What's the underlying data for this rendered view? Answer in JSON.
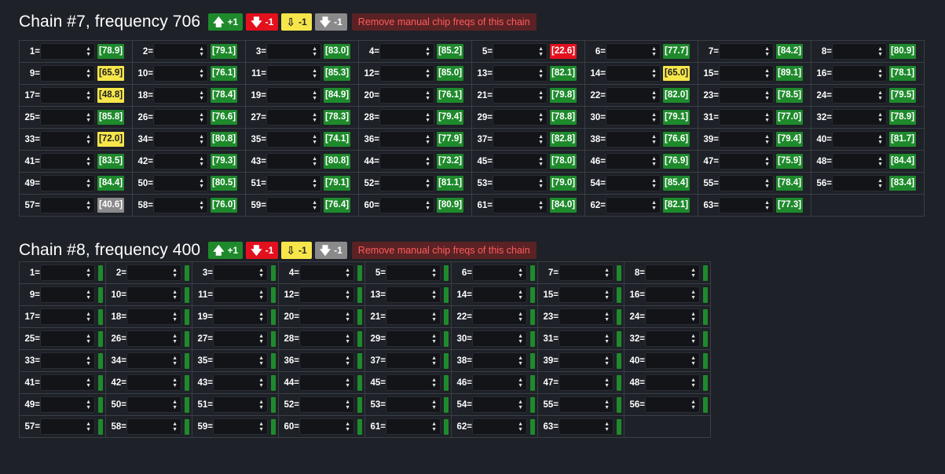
{
  "colors": {
    "background": "#1e2127",
    "green": "#1e8a2c",
    "red": "#e3101d",
    "yellow": "#f6e64a",
    "gray": "#8a8a8a",
    "remove_bg": "#5a2224",
    "remove_text": "#ff5b5e"
  },
  "icons": {
    "up": "arrow-up-icon",
    "down": "arrow-down-icon",
    "spinner": "spinner-arrows-icon"
  },
  "chains": [
    {
      "title": "Chain #7, frequency 706",
      "buttons": {
        "up": "+1",
        "down": "-1",
        "yellow": "-1",
        "gray": "-1",
        "remove": "Remove manual chip freqs of this chain"
      },
      "columns": 8,
      "chips": [
        {
          "label": "1=",
          "temp": "[78.9]",
          "status": "green"
        },
        {
          "label": "2=",
          "temp": "[79.1]",
          "status": "green"
        },
        {
          "label": "3=",
          "temp": "[83.0]",
          "status": "green"
        },
        {
          "label": "4=",
          "temp": "[85.2]",
          "status": "green"
        },
        {
          "label": "5=",
          "temp": "[22.6]",
          "status": "red"
        },
        {
          "label": "6=",
          "temp": "[77.7]",
          "status": "green"
        },
        {
          "label": "7=",
          "temp": "[84.2]",
          "status": "green"
        },
        {
          "label": "8=",
          "temp": "[80.9]",
          "status": "green"
        },
        {
          "label": "9=",
          "temp": "[65.9]",
          "status": "yellow"
        },
        {
          "label": "10=",
          "temp": "[76.1]",
          "status": "green"
        },
        {
          "label": "11=",
          "temp": "[85.3]",
          "status": "green"
        },
        {
          "label": "12=",
          "temp": "[85.0]",
          "status": "green"
        },
        {
          "label": "13=",
          "temp": "[82.1]",
          "status": "green"
        },
        {
          "label": "14=",
          "temp": "[65.0]",
          "status": "yellow"
        },
        {
          "label": "15=",
          "temp": "[89.1]",
          "status": "green"
        },
        {
          "label": "16=",
          "temp": "[78.1]",
          "status": "green"
        },
        {
          "label": "17=",
          "temp": "[48.8]",
          "status": "yellow"
        },
        {
          "label": "18=",
          "temp": "[78.4]",
          "status": "green"
        },
        {
          "label": "19=",
          "temp": "[84.9]",
          "status": "green"
        },
        {
          "label": "20=",
          "temp": "[76.1]",
          "status": "green"
        },
        {
          "label": "21=",
          "temp": "[79.8]",
          "status": "green"
        },
        {
          "label": "22=",
          "temp": "[82.0]",
          "status": "green"
        },
        {
          "label": "23=",
          "temp": "[78.5]",
          "status": "green"
        },
        {
          "label": "24=",
          "temp": "[79.5]",
          "status": "green"
        },
        {
          "label": "25=",
          "temp": "[85.8]",
          "status": "green"
        },
        {
          "label": "26=",
          "temp": "[76.6]",
          "status": "green"
        },
        {
          "label": "27=",
          "temp": "[78.3]",
          "status": "green"
        },
        {
          "label": "28=",
          "temp": "[79.4]",
          "status": "green"
        },
        {
          "label": "29=",
          "temp": "[78.8]",
          "status": "green"
        },
        {
          "label": "30=",
          "temp": "[79.1]",
          "status": "green"
        },
        {
          "label": "31=",
          "temp": "[77.0]",
          "status": "green"
        },
        {
          "label": "32=",
          "temp": "[78.9]",
          "status": "green"
        },
        {
          "label": "33=",
          "temp": "[72.0]",
          "status": "yellow"
        },
        {
          "label": "34=",
          "temp": "[80.8]",
          "status": "green"
        },
        {
          "label": "35=",
          "temp": "[74.1]",
          "status": "green"
        },
        {
          "label": "36=",
          "temp": "[77.9]",
          "status": "green"
        },
        {
          "label": "37=",
          "temp": "[82.8]",
          "status": "green"
        },
        {
          "label": "38=",
          "temp": "[76.6]",
          "status": "green"
        },
        {
          "label": "39=",
          "temp": "[79.4]",
          "status": "green"
        },
        {
          "label": "40=",
          "temp": "[81.7]",
          "status": "green"
        },
        {
          "label": "41=",
          "temp": "[83.5]",
          "status": "green"
        },
        {
          "label": "42=",
          "temp": "[79.3]",
          "status": "green"
        },
        {
          "label": "43=",
          "temp": "[80.8]",
          "status": "green"
        },
        {
          "label": "44=",
          "temp": "[73.2]",
          "status": "green"
        },
        {
          "label": "45=",
          "temp": "[78.0]",
          "status": "green"
        },
        {
          "label": "46=",
          "temp": "[76.9]",
          "status": "green"
        },
        {
          "label": "47=",
          "temp": "[75.9]",
          "status": "green"
        },
        {
          "label": "48=",
          "temp": "[84.4]",
          "status": "green"
        },
        {
          "label": "49=",
          "temp": "[84.4]",
          "status": "green"
        },
        {
          "label": "50=",
          "temp": "[80.5]",
          "status": "green"
        },
        {
          "label": "51=",
          "temp": "[79.1]",
          "status": "green"
        },
        {
          "label": "52=",
          "temp": "[81.1]",
          "status": "green"
        },
        {
          "label": "53=",
          "temp": "[79.0]",
          "status": "green"
        },
        {
          "label": "54=",
          "temp": "[85.4]",
          "status": "green"
        },
        {
          "label": "55=",
          "temp": "[78.4]",
          "status": "green"
        },
        {
          "label": "56=",
          "temp": "[83.4]",
          "status": "green"
        },
        {
          "label": "57=",
          "temp": "[40.6]",
          "status": "gray"
        },
        {
          "label": "58=",
          "temp": "[76.0]",
          "status": "green"
        },
        {
          "label": "59=",
          "temp": "[76.4]",
          "status": "green"
        },
        {
          "label": "60=",
          "temp": "[80.9]",
          "status": "green"
        },
        {
          "label": "61=",
          "temp": "[84.0]",
          "status": "green"
        },
        {
          "label": "62=",
          "temp": "[82.1]",
          "status": "green"
        },
        {
          "label": "63=",
          "temp": "[77.3]",
          "status": "green"
        }
      ]
    },
    {
      "title": "Chain #8, frequency 400",
      "buttons": {
        "up": "+1",
        "down": "-1",
        "yellow": "-1",
        "gray": "-1",
        "remove": "Remove manual chip freqs of this chain"
      },
      "columns": 8,
      "chips": [
        {
          "label": "1=",
          "status": "green"
        },
        {
          "label": "2=",
          "status": "green"
        },
        {
          "label": "3=",
          "status": "green"
        },
        {
          "label": "4=",
          "status": "green"
        },
        {
          "label": "5=",
          "status": "green"
        },
        {
          "label": "6=",
          "status": "green"
        },
        {
          "label": "7=",
          "status": "green"
        },
        {
          "label": "8=",
          "status": "green"
        },
        {
          "label": "9=",
          "status": "green"
        },
        {
          "label": "10=",
          "status": "green"
        },
        {
          "label": "11=",
          "status": "green"
        },
        {
          "label": "12=",
          "status": "green"
        },
        {
          "label": "13=",
          "status": "green"
        },
        {
          "label": "14=",
          "status": "green"
        },
        {
          "label": "15=",
          "status": "green"
        },
        {
          "label": "16=",
          "status": "green"
        },
        {
          "label": "17=",
          "status": "green"
        },
        {
          "label": "18=",
          "status": "green"
        },
        {
          "label": "19=",
          "status": "green"
        },
        {
          "label": "20=",
          "status": "green"
        },
        {
          "label": "21=",
          "status": "green"
        },
        {
          "label": "22=",
          "status": "green"
        },
        {
          "label": "23=",
          "status": "green"
        },
        {
          "label": "24=",
          "status": "green"
        },
        {
          "label": "25=",
          "status": "green"
        },
        {
          "label": "26=",
          "status": "green"
        },
        {
          "label": "27=",
          "status": "green"
        },
        {
          "label": "28=",
          "status": "green"
        },
        {
          "label": "29=",
          "status": "green"
        },
        {
          "label": "30=",
          "status": "green"
        },
        {
          "label": "31=",
          "status": "green"
        },
        {
          "label": "32=",
          "status": "green"
        },
        {
          "label": "33=",
          "status": "green"
        },
        {
          "label": "34=",
          "status": "green"
        },
        {
          "label": "35=",
          "status": "green"
        },
        {
          "label": "36=",
          "status": "green"
        },
        {
          "label": "37=",
          "status": "green"
        },
        {
          "label": "38=",
          "status": "green"
        },
        {
          "label": "39=",
          "status": "green"
        },
        {
          "label": "40=",
          "status": "green"
        },
        {
          "label": "41=",
          "status": "green"
        },
        {
          "label": "42=",
          "status": "green"
        },
        {
          "label": "43=",
          "status": "green"
        },
        {
          "label": "44=",
          "status": "green"
        },
        {
          "label": "45=",
          "status": "green"
        },
        {
          "label": "46=",
          "status": "green"
        },
        {
          "label": "47=",
          "status": "green"
        },
        {
          "label": "48=",
          "status": "green"
        },
        {
          "label": "49=",
          "status": "green"
        },
        {
          "label": "50=",
          "status": "green"
        },
        {
          "label": "51=",
          "status": "green"
        },
        {
          "label": "52=",
          "status": "green"
        },
        {
          "label": "53=",
          "status": "green"
        },
        {
          "label": "54=",
          "status": "green"
        },
        {
          "label": "55=",
          "status": "green"
        },
        {
          "label": "56=",
          "status": "green"
        },
        {
          "label": "57=",
          "status": "green"
        },
        {
          "label": "58=",
          "status": "green"
        },
        {
          "label": "59=",
          "status": "green"
        },
        {
          "label": "60=",
          "status": "green"
        },
        {
          "label": "61=",
          "status": "green"
        },
        {
          "label": "62=",
          "status": "green"
        },
        {
          "label": "63=",
          "status": "green"
        }
      ]
    }
  ]
}
